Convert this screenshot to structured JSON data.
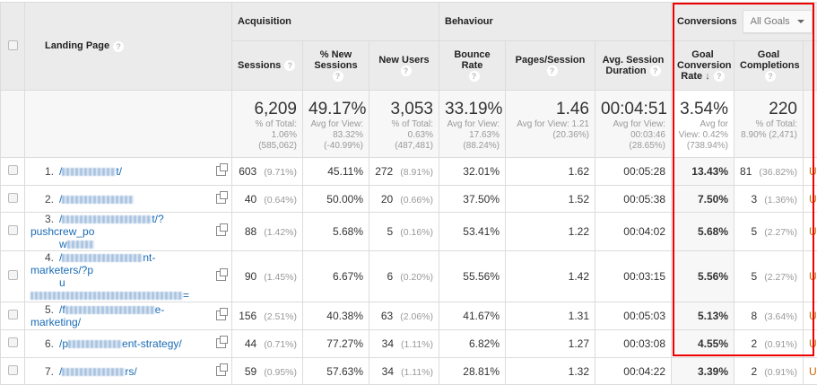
{
  "header": {
    "landing_page": "Landing Page",
    "acquisition": "Acquisition",
    "behaviour": "Behaviour",
    "conversions": "Conversions",
    "goal_select": "All Goals",
    "cols": [
      "Sessions",
      "% New Sessions",
      "New Users",
      "Bounce Rate",
      "Pages/Session",
      "Avg. Session Duration",
      "Goal Conversion Rate",
      "Goal Completions"
    ],
    "help": "?",
    "sort_arrow": "↓"
  },
  "totals": [
    {
      "value": "6,209",
      "l1": "% of Total:",
      "l2": "1.06%",
      "l3": "(585,062)"
    },
    {
      "value": "49.17%",
      "l1": "Avg for View:",
      "l2": "83.32%",
      "l3": "(-40.99%)"
    },
    {
      "value": "3,053",
      "l1": "% of Total:",
      "l2": "0.63%",
      "l3": "(487,481)"
    },
    {
      "value": "33.19%",
      "l1": "Avg for View:",
      "l2": "17.63%",
      "l3": "(88.24%)"
    },
    {
      "value": "1.46",
      "l1": "Avg for View: 1.21",
      "l2": "(20.36%)",
      "l3": ""
    },
    {
      "value": "00:04:51",
      "l1": "Avg for View:",
      "l2": "00:03:46",
      "l3": "(28.65%)"
    },
    {
      "value": "3.54%",
      "l1": "Avg for",
      "l2": "View: 0.42%",
      "l3": "(738.94%)"
    },
    {
      "value": "220",
      "l1": "% of Total:",
      "l2": "8.90% (2,471)",
      "l3": ""
    }
  ],
  "rows": [
    {
      "n": "1.",
      "pre": "/",
      "post": "t/",
      "post2": "",
      "sessions": "603",
      "sp": "(9.71%)",
      "new_sess": "45.11%",
      "new_users": "272",
      "np": "(8.91%)",
      "bounce": "32.01%",
      "pages": "1.62",
      "dur": "00:05:28",
      "gcr": "13.43%",
      "gc": "81",
      "gp": "(36.82%)",
      "extra": "U"
    },
    {
      "n": "2.",
      "pre": "/",
      "post": "",
      "post2": "",
      "sessions": "40",
      "sp": "(0.64%)",
      "new_sess": "50.00%",
      "new_users": "20",
      "np": "(0.66%)",
      "bounce": "37.50%",
      "pages": "1.52",
      "dur": "00:05:38",
      "gcr": "7.50%",
      "gc": "3",
      "gp": "(1.36%)",
      "extra": "U"
    },
    {
      "n": "3.",
      "pre": "/",
      "post": "t/?pushcrew_po",
      "post2": "w",
      "sessions": "88",
      "sp": "(1.42%)",
      "new_sess": "5.68%",
      "new_users": "5",
      "np": "(0.16%)",
      "bounce": "53.41%",
      "pages": "1.22",
      "dur": "00:04:02",
      "gcr": "5.68%",
      "gc": "5",
      "gp": "(2.27%)",
      "extra": "U"
    },
    {
      "n": "4.",
      "pre": "/",
      "post": "nt-marketers/?p",
      "post2": "u",
      "post3": "=",
      "sessions": "90",
      "sp": "(1.45%)",
      "new_sess": "6.67%",
      "new_users": "6",
      "np": "(0.20%)",
      "bounce": "55.56%",
      "pages": "1.42",
      "dur": "00:03:15",
      "gcr": "5.56%",
      "gc": "5",
      "gp": "(2.27%)",
      "extra": "U"
    },
    {
      "n": "5.",
      "pre": "/f",
      "post": "e-marketing/",
      "post2": "",
      "sessions": "156",
      "sp": "(2.51%)",
      "new_sess": "40.38%",
      "new_users": "63",
      "np": "(2.06%)",
      "bounce": "41.67%",
      "pages": "1.31",
      "dur": "00:05:03",
      "gcr": "5.13%",
      "gc": "8",
      "gp": "(3.64%)",
      "extra": "U"
    },
    {
      "n": "6.",
      "pre": "/p",
      "post": "ent-strategy/",
      "post2": "",
      "sessions": "44",
      "sp": "(0.71%)",
      "new_sess": "77.27%",
      "new_users": "34",
      "np": "(1.11%)",
      "bounce": "6.82%",
      "pages": "1.27",
      "dur": "00:03:08",
      "gcr": "4.55%",
      "gc": "2",
      "gp": "(0.91%)",
      "extra": "U"
    },
    {
      "n": "7.",
      "pre": "/",
      "post": "rs/",
      "post2": "",
      "sessions": "59",
      "sp": "(0.95%)",
      "new_sess": "57.63%",
      "new_users": "34",
      "np": "(1.11%)",
      "bounce": "28.81%",
      "pages": "1.32",
      "dur": "00:04:22",
      "gcr": "3.39%",
      "gc": "2",
      "gp": "(0.91%)",
      "extra": "U"
    }
  ]
}
